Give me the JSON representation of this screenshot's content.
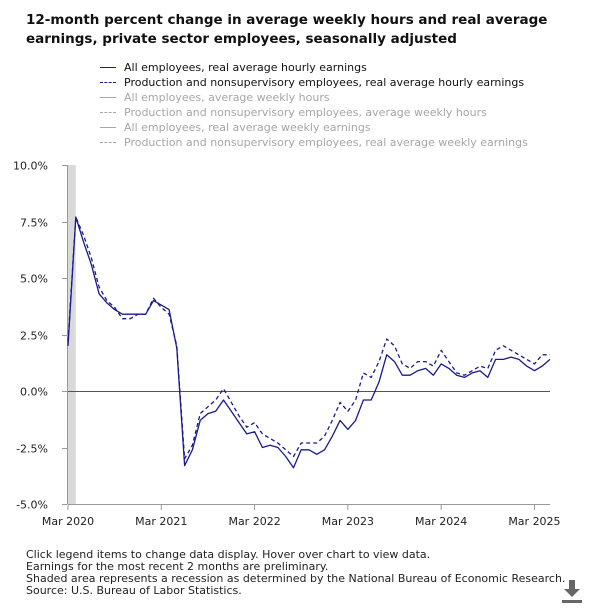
{
  "title": "12-month percent change in average weekly hours and real average earnings, private sector employees, seasonally adjusted",
  "legend": [
    {
      "label": "All employees, real average hourly earnings",
      "style": "solid",
      "active": true
    },
    {
      "label": "Production and nonsupervisory employees, real average hourly earnings",
      "style": "dashed",
      "active": true
    },
    {
      "label": "All employees, average weekly hours",
      "style": "solid",
      "active": false
    },
    {
      "label": "Production and nonsupervisory employees, average weekly hours",
      "style": "dashed",
      "active": false
    },
    {
      "label": "All employees, real average weekly earnings",
      "style": "solid",
      "active": false
    },
    {
      "label": "Production and nonsupervisory employees, real average weekly earnings",
      "style": "dashed",
      "active": false
    }
  ],
  "notes": [
    "Click legend items to change data display. Hover over chart to view data.",
    "Earnings for the most recent 2 months are preliminary.",
    "Shaded area represents a recession as determined by the National Bureau of Economic Research.",
    "Source: U.S. Bureau of Labor Statistics."
  ],
  "colors": {
    "series": "#1a1a8c",
    "inactive": "#a6a6a6",
    "recession": "#d9d9d9",
    "zero_line": "#555555",
    "axis": "#999999"
  },
  "icons": {
    "download": "download-icon"
  },
  "chart_data": {
    "type": "line",
    "x_start": "Mar 2020",
    "x_tick_labels": [
      "Mar 2020",
      "Mar 2021",
      "Mar 2022",
      "Mar 2023",
      "Mar 2024",
      "Mar 2025"
    ],
    "y_tick_labels": [
      "10.0%",
      "7.5%",
      "5.0%",
      "2.5%",
      "0.0%",
      "-2.5%",
      "-5.0%"
    ],
    "ylim": [
      -5,
      10
    ],
    "y_ticks": [
      10,
      7.5,
      5,
      2.5,
      0,
      -2.5,
      -5
    ],
    "recession": [
      "Mar 2020",
      "Apr 2020"
    ],
    "series": [
      {
        "name": "All employees, real average hourly earnings",
        "style": "solid",
        "values": [
          2.0,
          7.7,
          6.6,
          5.6,
          4.3,
          3.9,
          3.6,
          3.4,
          3.4,
          3.4,
          3.4,
          4.0,
          3.8,
          3.6,
          1.9,
          -3.3,
          -2.6,
          -1.3,
          -1.0,
          -0.9,
          -0.4,
          -0.9,
          -1.4,
          -1.9,
          -1.8,
          -2.5,
          -2.4,
          -2.5,
          -2.9,
          -3.4,
          -2.6,
          -2.6,
          -2.8,
          -2.6,
          -2.0,
          -1.3,
          -1.7,
          -1.3,
          -0.4,
          -0.4,
          0.4,
          1.6,
          1.3,
          0.7,
          0.7,
          0.9,
          1.0,
          0.7,
          1.2,
          1.0,
          0.7,
          0.6,
          0.8,
          0.9,
          0.6,
          1.4,
          1.4,
          1.5,
          1.4,
          1.1,
          0.9,
          1.1,
          1.4
        ]
      },
      {
        "name": "Production and nonsupervisory employees, real average hourly earnings",
        "style": "dashed",
        "values": [
          2.2,
          7.7,
          6.9,
          5.9,
          4.6,
          4.0,
          3.7,
          3.2,
          3.2,
          3.4,
          3.4,
          4.1,
          3.7,
          3.4,
          2.0,
          -3.0,
          -2.4,
          -1.0,
          -0.7,
          -0.4,
          0.1,
          -0.5,
          -1.1,
          -1.6,
          -1.4,
          -1.9,
          -2.1,
          -2.3,
          -2.6,
          -2.9,
          -2.3,
          -2.3,
          -2.3,
          -2.0,
          -1.3,
          -0.5,
          -0.9,
          -0.4,
          0.8,
          0.6,
          1.3,
          2.3,
          2.0,
          1.2,
          1.0,
          1.3,
          1.3,
          1.1,
          1.8,
          1.3,
          0.8,
          0.7,
          0.9,
          1.1,
          1.0,
          1.8,
          2.0,
          1.8,
          1.6,
          1.4,
          1.2,
          1.6,
          1.6
        ]
      }
    ]
  }
}
